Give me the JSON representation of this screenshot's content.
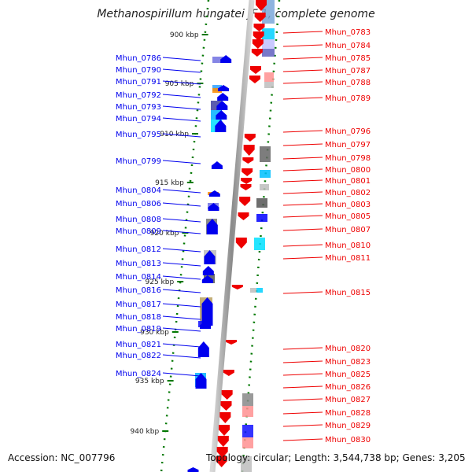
{
  "title": "Methanospirillum hungatei JF-1, complete genome",
  "footer": {
    "accession": "Accession: NC_007796",
    "topology": "Topology: circular; Length: 3,544,738 bp; Genes: 3,205"
  },
  "ticks": [
    "900 kbp",
    "905 kbp",
    "910 kbp",
    "915 kbp",
    "920 kbp",
    "925 kbp",
    "930 kbp",
    "935 kbp",
    "940 kbp"
  ],
  "left_genes": [
    "Mhun_0786",
    "Mhun_0790",
    "Mhun_0791",
    "Mhun_0792",
    "Mhun_0793",
    "Mhun_0794",
    "Mhun_0795",
    "Mhun_0799",
    "Mhun_0804",
    "Mhun_0806",
    "Mhun_0808",
    "Mhun_0809",
    "Mhun_0812",
    "Mhun_0813",
    "Mhun_0814",
    "Mhun_0816",
    "Mhun_0817",
    "Mhun_0818",
    "Mhun_0819",
    "Mhun_0821",
    "Mhun_0822",
    "Mhun_0824"
  ],
  "right_genes": [
    "Mhun_0783",
    "Mhun_0784",
    "Mhun_0785",
    "Mhun_0787",
    "Mhun_0788",
    "Mhun_0789",
    "Mhun_0796",
    "Mhun_0797",
    "Mhun_0798",
    "Mhun_0800",
    "Mhun_0801",
    "Mhun_0802",
    "Mhun_0803",
    "Mhun_0805",
    "Mhun_0807",
    "Mhun_0810",
    "Mhun_0811",
    "Mhun_0815",
    "Mhun_0820",
    "Mhun_0823",
    "Mhun_0825",
    "Mhun_0826",
    "Mhun_0827",
    "Mhun_0828",
    "Mhun_0829",
    "Mhun_0830"
  ],
  "colors": {
    "forward": "#0000ee",
    "reverse": "#ee0000",
    "backbone": "#999999",
    "tick": "#007700"
  }
}
